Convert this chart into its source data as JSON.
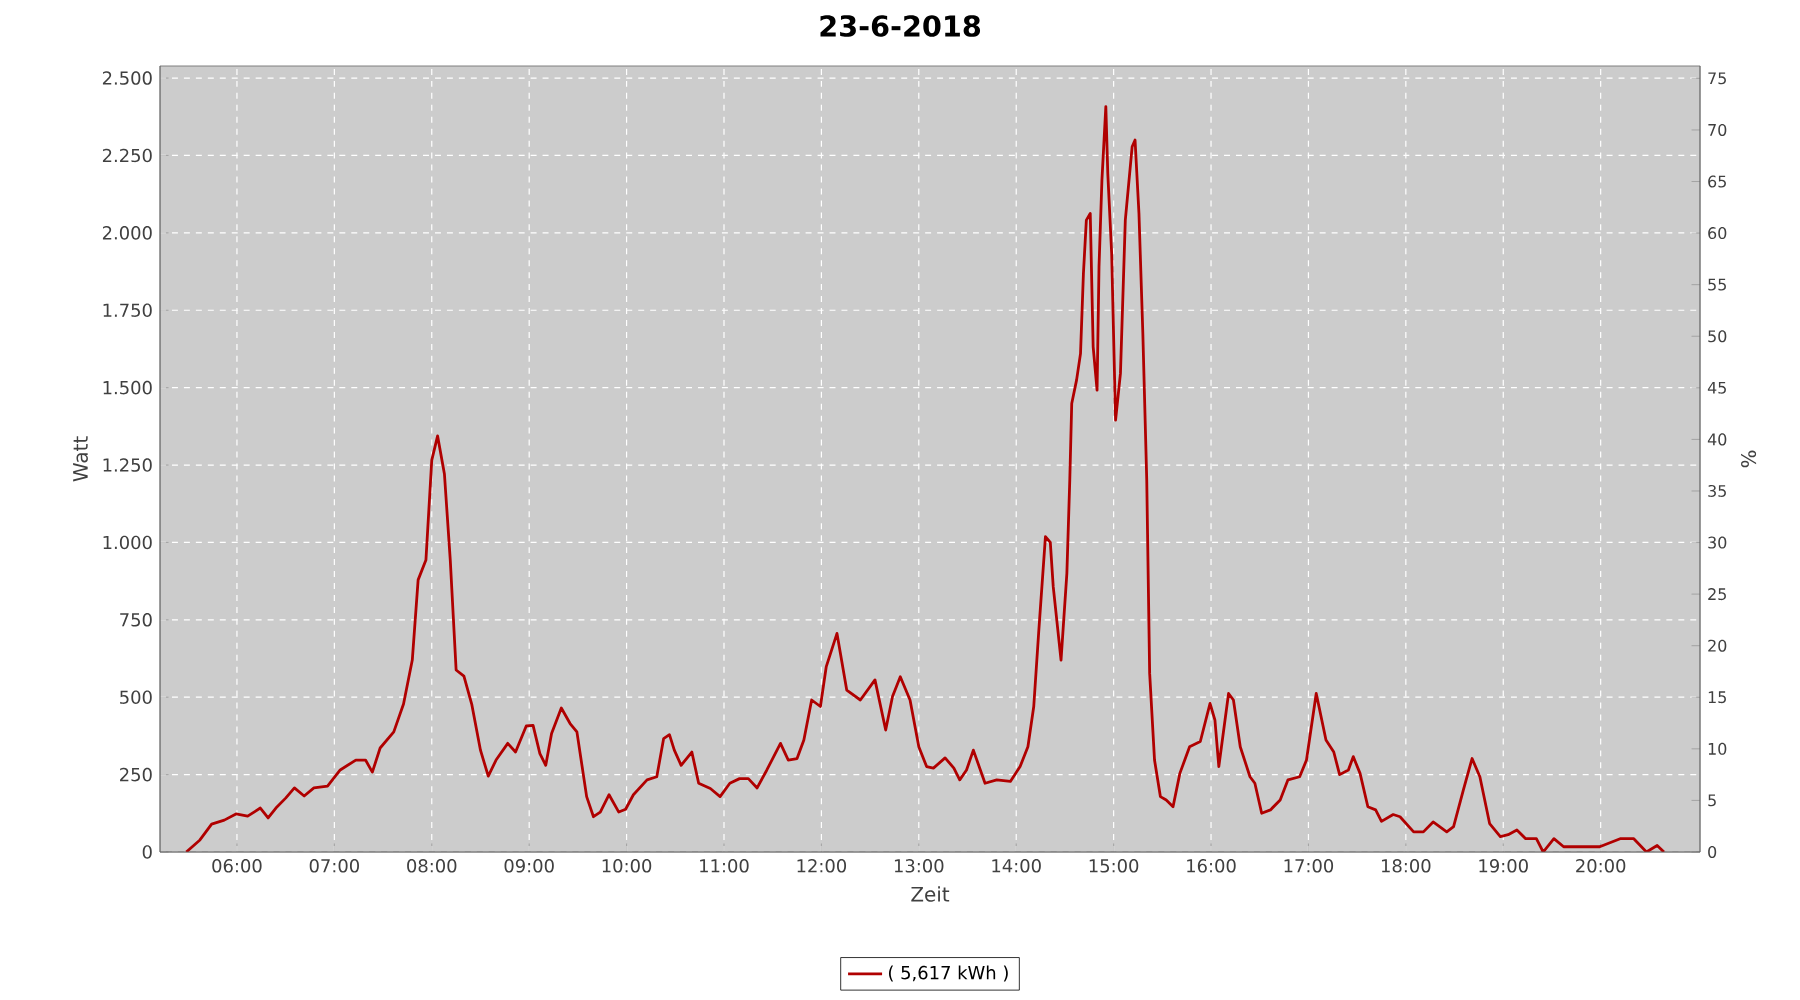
{
  "chart_data": {
    "type": "line",
    "title": "23-6-2018",
    "xlabel": "Zeit",
    "ylabel": "Watt",
    "y2label": "%",
    "x": [
      5.48,
      5.62,
      5.74,
      5.87,
      5.99,
      6.11,
      6.24,
      6.32,
      6.4,
      6.5,
      6.59,
      6.69,
      6.79,
      6.93,
      7.06,
      7.22,
      7.32,
      7.39,
      7.47,
      7.61,
      7.71,
      7.8,
      7.86,
      7.94,
      8.0,
      8.06,
      8.13,
      8.19,
      8.25,
      8.33,
      8.41,
      8.5,
      8.58,
      8.66,
      8.78,
      8.86,
      8.97,
      9.04,
      9.11,
      9.17,
      9.23,
      9.33,
      9.42,
      9.49,
      9.59,
      9.66,
      9.73,
      9.82,
      9.92,
      9.99,
      10.07,
      10.21,
      10.31,
      10.38,
      10.44,
      10.49,
      10.56,
      10.67,
      10.74,
      10.86,
      10.96,
      11.06,
      11.16,
      11.25,
      11.34,
      11.44,
      11.58,
      11.66,
      11.75,
      11.82,
      11.9,
      11.99,
      12.05,
      12.16,
      12.26,
      12.4,
      12.55,
      12.66,
      12.73,
      12.81,
      12.91,
      13.0,
      13.08,
      13.15,
      13.27,
      13.36,
      13.42,
      13.49,
      13.56,
      13.68,
      13.8,
      13.94,
      14.04,
      14.12,
      14.18,
      14.23,
      14.3,
      14.35,
      14.38,
      14.46,
      14.52,
      14.55,
      14.57,
      14.62,
      14.66,
      14.69,
      14.72,
      14.76,
      14.79,
      14.83,
      14.85,
      14.88,
      14.92,
      14.94,
      14.98,
      15.02,
      15.07,
      15.12,
      15.19,
      15.22,
      15.26,
      15.3,
      15.34,
      15.37,
      15.42,
      15.48,
      15.54,
      15.61,
      15.68,
      15.78,
      15.89,
      15.99,
      16.04,
      16.08,
      16.18,
      16.23,
      16.3,
      16.4,
      16.45,
      16.52,
      16.61,
      16.71,
      16.79,
      16.91,
      16.98,
      17.08,
      17.18,
      17.26,
      17.32,
      17.41,
      17.46,
      17.53,
      17.61,
      17.69,
      17.75,
      17.87,
      17.94,
      18.08,
      18.18,
      18.28,
      18.42,
      18.49,
      18.59,
      18.68,
      18.76,
      18.86,
      18.97,
      19.05,
      19.14,
      19.23,
      19.34,
      19.41,
      19.52,
      19.62,
      19.99,
      20.2,
      20.34,
      20.47,
      20.58,
      20.65
    ],
    "series": [
      {
        "name": "( 5,617 kWh )",
        "color": "#b00000",
        "values": [
          0,
          39,
          90,
          103,
          123,
          116,
          142,
          110,
          142,
          174,
          207,
          181,
          207,
          213,
          265,
          297,
          297,
          258,
          336,
          388,
          478,
          620,
          879,
          943,
          1266,
          1344,
          1221,
          943,
          588,
          568,
          478,
          329,
          245,
          297,
          351,
          323,
          407,
          409,
          318,
          280,
          383,
          465,
          415,
          388,
          179,
          114,
          129,
          185,
          129,
          138,
          185,
          233,
          243,
          366,
          379,
          329,
          280,
          323,
          222,
          205,
          179,
          222,
          237,
          237,
          207,
          265,
          351,
          297,
          302,
          362,
          491,
          470,
          599,
          706,
          523,
          491,
          556,
          394,
          502,
          566,
          491,
          340,
          276,
          271,
          304,
          271,
          233,
          265,
          329,
          222,
          233,
          228,
          276,
          340,
          470,
          706,
          1019,
          1000,
          857,
          620,
          900,
          1202,
          1449,
          1525,
          1610,
          1869,
          2041,
          2063,
          1632,
          1492,
          1891,
          2171,
          2408,
          2192,
          1933,
          1395,
          1546,
          2041,
          2278,
          2300,
          2063,
          1675,
          1202,
          577,
          297,
          179,
          168,
          146,
          254,
          340,
          357,
          480,
          426,
          276,
          512,
          491,
          340,
          243,
          222,
          125,
          136,
          168,
          233,
          243,
          297,
          512,
          362,
          323,
          250,
          265,
          308,
          254,
          146,
          136,
          99,
          121,
          114,
          65,
          65,
          97,
          65,
          82,
          200,
          302,
          243,
          92,
          50,
          56,
          71,
          43,
          43,
          0,
          43,
          17,
          17,
          43,
          43,
          0,
          21,
          0
        ]
      }
    ],
    "xlim": [
      5.21,
      21.02
    ],
    "xticks": [
      {
        "value": 6,
        "label": "06:00"
      },
      {
        "value": 7,
        "label": "07:00"
      },
      {
        "value": 8,
        "label": "08:00"
      },
      {
        "value": 9,
        "label": "09:00"
      },
      {
        "value": 10,
        "label": "10:00"
      },
      {
        "value": 11,
        "label": "11:00"
      },
      {
        "value": 12,
        "label": "12:00"
      },
      {
        "value": 13,
        "label": "13:00"
      },
      {
        "value": 14,
        "label": "14:00"
      },
      {
        "value": 15,
        "label": "15:00"
      },
      {
        "value": 16,
        "label": "16:00"
      },
      {
        "value": 17,
        "label": "17:00"
      },
      {
        "value": 18,
        "label": "18:00"
      },
      {
        "value": 19,
        "label": "19:00"
      },
      {
        "value": 20,
        "label": "20:00"
      }
    ],
    "ylim": [
      0,
      2539
    ],
    "yticks": [
      0,
      250,
      500,
      750,
      {
        "value": 1000,
        "label": "1.000"
      },
      {
        "value": 1250,
        "label": "1.250"
      },
      {
        "value": 1500,
        "label": "1.500"
      },
      {
        "value": 1750,
        "label": "1.750"
      },
      {
        "value": 2000,
        "label": "2.000"
      },
      {
        "value": 2250,
        "label": "2.250"
      },
      {
        "value": 2500,
        "label": "2.500"
      }
    ],
    "y2lim": [
      0,
      76.2
    ],
    "y2ticks": [
      0,
      5,
      10,
      15,
      20,
      25,
      30,
      35,
      40,
      45,
      50,
      55,
      60,
      65,
      70,
      75
    ],
    "grid": true,
    "legend": "bottom",
    "marker": "none",
    "line_style": "solid"
  }
}
